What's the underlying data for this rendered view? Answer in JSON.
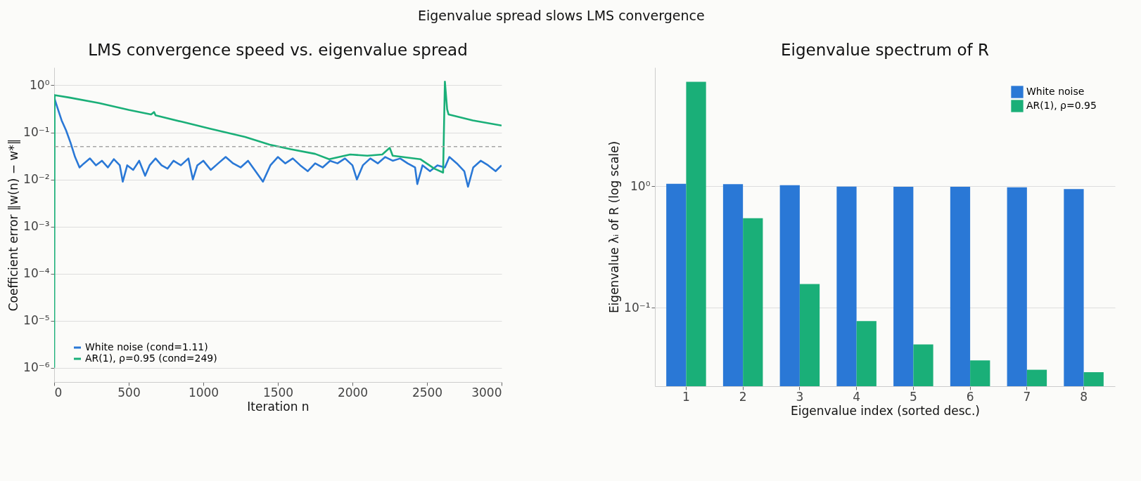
{
  "chart_data": [
    {
      "type": "line",
      "title": "LMS convergence speed vs. eigenvalue spread",
      "annotations": [
        "Eigenvalue spread slows LMS convergence"
      ],
      "xlabel": "Iteration n",
      "ylabel": "Coefficient error ‖w(n) − w*‖",
      "log": "y",
      "grid": "y",
      "legend": "bottom left",
      "xlim": [
        0,
        3000
      ],
      "ylim": [
        5e-07,
        2.4
      ],
      "xticks": [
        0,
        500,
        1000,
        1500,
        2000,
        2500,
        3000
      ],
      "yticks": [
        {
          "value": 1e-06,
          "label": "10⁻⁶"
        },
        {
          "value": 1e-05,
          "label": "10⁻⁵"
        },
        {
          "value": 0.0001,
          "label": "10⁻⁴"
        },
        {
          "value": 0.001,
          "label": "10⁻³"
        },
        {
          "value": 0.01,
          "label": "10⁻²"
        },
        {
          "value": 0.1,
          "label": "10⁻¹"
        },
        {
          "value": 1,
          "label": "10⁰"
        }
      ],
      "ref_lines": [
        {
          "axis": "y",
          "value": 0.05,
          "color": "#a6a6a6",
          "line_style": "dashed"
        }
      ],
      "series": [
        {
          "name": "White noise (cond=1.11)",
          "color": "#2a78d6",
          "x": [
            0,
            20,
            50,
            80,
            110,
            140,
            170,
            200,
            240,
            280,
            320,
            360,
            400,
            440,
            460,
            490,
            530,
            570,
            610,
            640,
            680,
            720,
            760,
            800,
            850,
            900,
            930,
            960,
            1000,
            1050,
            1100,
            1150,
            1200,
            1250,
            1300,
            1350,
            1400,
            1450,
            1500,
            1550,
            1600,
            1650,
            1700,
            1750,
            1800,
            1850,
            1900,
            1950,
            2000,
            2030,
            2070,
            2120,
            2170,
            2220,
            2270,
            2320,
            2370,
            2420,
            2435,
            2470,
            2520,
            2570,
            2620,
            2650,
            2700,
            2750,
            2775,
            2810,
            2860,
            2910,
            2960,
            3000
          ],
          "values": [
            0.55,
            0.35,
            0.18,
            0.11,
            0.06,
            0.03,
            0.018,
            0.022,
            0.028,
            0.02,
            0.025,
            0.018,
            0.027,
            0.02,
            0.009,
            0.02,
            0.016,
            0.025,
            0.012,
            0.02,
            0.028,
            0.02,
            0.017,
            0.025,
            0.02,
            0.028,
            0.01,
            0.02,
            0.025,
            0.016,
            0.022,
            0.03,
            0.022,
            0.018,
            0.025,
            0.015,
            0.009,
            0.02,
            0.03,
            0.022,
            0.028,
            0.02,
            0.015,
            0.022,
            0.018,
            0.025,
            0.022,
            0.028,
            0.02,
            0.01,
            0.02,
            0.028,
            0.022,
            0.03,
            0.025,
            0.028,
            0.022,
            0.018,
            0.008,
            0.02,
            0.015,
            0.02,
            0.018,
            0.03,
            0.022,
            0.015,
            0.007,
            0.018,
            0.025,
            0.02,
            0.015,
            0.02
          ]
        },
        {
          "name": "AR(1), ρ=0.95 (cond=249)",
          "color": "#1aaf78",
          "x": [
            0,
            3,
            100,
            300,
            500,
            650,
            670,
            680,
            850,
            1045,
            1280,
            1445,
            1586,
            1750,
            1844,
            1985,
            2100,
            2200,
            2250,
            2270,
            2455,
            2549,
            2608,
            2620,
            2635,
            2645,
            2807,
            3000
          ],
          "values": [
            1e-06,
            0.62,
            0.55,
            0.42,
            0.3,
            0.24,
            0.27,
            0.23,
            0.17,
            0.12,
            0.08,
            0.055,
            0.044,
            0.035,
            0.027,
            0.034,
            0.032,
            0.034,
            0.047,
            0.032,
            0.027,
            0.017,
            0.014,
            1.2,
            0.31,
            0.24,
            0.18,
            0.14
          ]
        }
      ]
    },
    {
      "type": "bar",
      "title": "Eigenvalue spectrum of R",
      "xlabel": "Eigenvalue index (sorted desc.)",
      "ylabel": "Eigenvalue λᵢ of R (log scale)",
      "log": "y",
      "grid": "y",
      "legend": "top right",
      "categories": [
        "1",
        "2",
        "3",
        "4",
        "5",
        "6",
        "7",
        "8"
      ],
      "ylim": [
        0.0227,
        9.5
      ],
      "yticks": [
        {
          "value": 0.1,
          "label": "10⁻¹"
        },
        {
          "value": 1,
          "label": "10⁰"
        }
      ],
      "series": [
        {
          "name": "White noise",
          "color": "#2a78d6",
          "values": [
            1.05,
            1.04,
            1.02,
            0.995,
            0.99,
            0.99,
            0.98,
            0.95
          ]
        },
        {
          "name": "AR(1), ρ=0.95",
          "color": "#1aaf78",
          "values": [
            7.24,
            0.546,
            0.157,
            0.078,
            0.05,
            0.037,
            0.031,
            0.0296
          ]
        }
      ]
    }
  ]
}
